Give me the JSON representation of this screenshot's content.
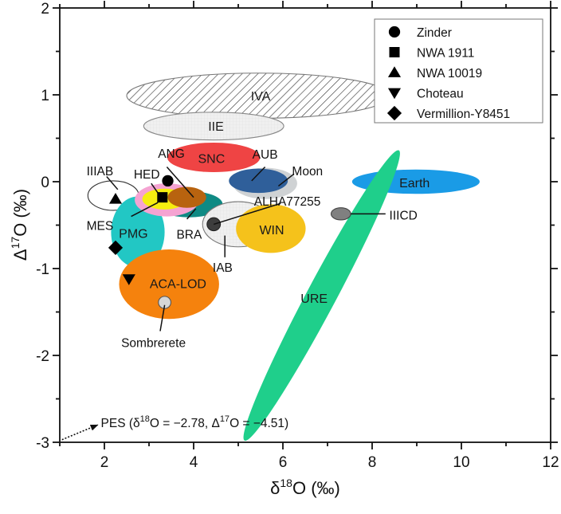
{
  "chart_data": {
    "type": "scatter",
    "title": "",
    "xlabel": "δ18O (‰)",
    "ylabel": "Δ17O (‰)",
    "xlim": [
      1,
      12
    ],
    "ylim": [
      -3,
      2
    ],
    "x_ticks": [
      2,
      4,
      6,
      8,
      10,
      12
    ],
    "x_tick_labels": [
      "2",
      "4",
      "6",
      "8",
      "10",
      "12"
    ],
    "y_ticks": [
      -3,
      -2,
      -1,
      0,
      1,
      2
    ],
    "y_tick_labels": [
      "-3",
      "-2",
      "-1",
      "0",
      "1",
      "2"
    ],
    "x_minor_step": 1,
    "y_minor_step": 0.5,
    "grid": false,
    "legend": {
      "placement": "top-right",
      "entries": [
        {
          "name": "Zinder",
          "marker": "circle"
        },
        {
          "name": "NWA 1911",
          "marker": "square"
        },
        {
          "name": "NWA 10019",
          "marker": "triangle-up"
        },
        {
          "name": "Choteau",
          "marker": "triangle-down"
        },
        {
          "name": "Vermillion-Y8451",
          "marker": "diamond"
        }
      ]
    },
    "fields": [
      {
        "name": "IVA",
        "cx": 5.45,
        "cy": 0.99,
        "rx": 2.95,
        "ry": 0.26,
        "angle": 0,
        "fill": "hatch",
        "stroke": "#777777",
        "label": "IVA",
        "label_pos": [
          5.5,
          0.99
        ]
      },
      {
        "name": "IIE",
        "cx": 4.45,
        "cy": 0.64,
        "rx": 1.57,
        "ry": 0.16,
        "angle": 0,
        "fill": "#f2f2f2",
        "stroke": "#888888",
        "label": "IIE",
        "label_pos": [
          4.5,
          0.64
        ]
      },
      {
        "name": "SNC",
        "cx": 4.45,
        "cy": 0.28,
        "rx": 1.04,
        "ry": 0.17,
        "angle": 0,
        "fill": "#ef4444",
        "stroke": "none",
        "label": "SNC",
        "label_pos": [
          4.4,
          0.27
        ]
      },
      {
        "name": "Moon",
        "cx": 5.6,
        "cy": -0.02,
        "rx": 0.72,
        "ry": 0.18,
        "angle": 0,
        "fill": "#cfd2d4",
        "stroke": "none",
        "label": "Moon",
        "label_pos": [
          6.55,
          0.13
        ]
      },
      {
        "name": "AUB",
        "cx": 5.45,
        "cy": 0.01,
        "rx": 0.66,
        "ry": 0.14,
        "angle": 0,
        "fill": "#2f5f9a",
        "stroke": "none",
        "label": "AUB",
        "label_pos": [
          5.6,
          0.32
        ]
      },
      {
        "name": "Earth",
        "cx": 8.98,
        "cy": 0.0,
        "rx": 1.43,
        "ry": 0.14,
        "angle": 0,
        "fill": "#1a9be6",
        "stroke": "none",
        "label": "Earth",
        "label_pos": [
          8.95,
          -0.01
        ]
      },
      {
        "name": "IIIAB",
        "cx": 2.2,
        "cy": -0.16,
        "rx": 0.57,
        "ry": 0.17,
        "angle": 0,
        "fill": "#ffffff",
        "stroke": "#333333",
        "label": "IIIAB",
        "label_pos": [
          1.9,
          0.13
        ]
      },
      {
        "name": "PMG",
        "cx": 2.75,
        "cy": -0.58,
        "rx": 0.6,
        "ry": 0.41,
        "angle": 0,
        "fill": "#22c7c4",
        "stroke": "none",
        "label": "PMG",
        "label_pos": [
          2.65,
          -0.59
        ]
      },
      {
        "name": "BRA",
        "cx": 3.9,
        "cy": -0.26,
        "rx": 0.75,
        "ry": 0.15,
        "angle": 0,
        "fill": "#0f8a84",
        "stroke": "none",
        "label": "BRA",
        "label_pos": [
          3.9,
          -0.6
        ]
      },
      {
        "name": "HED",
        "cx": 3.4,
        "cy": -0.21,
        "rx": 0.72,
        "ry": 0.19,
        "angle": 0,
        "fill": "#f5a3d2",
        "stroke": "none",
        "label": "HED",
        "label_pos": [
          2.95,
          0.09
        ]
      },
      {
        "name": "MES",
        "cx": 3.35,
        "cy": -0.2,
        "rx": 0.5,
        "ry": 0.12,
        "angle": 0,
        "fill": "#f5ee10",
        "stroke": "none",
        "label": "MES",
        "label_pos": [
          1.9,
          -0.5
        ]
      },
      {
        "name": "ANG",
        "cx": 3.85,
        "cy": -0.18,
        "rx": 0.43,
        "ry": 0.12,
        "angle": 0,
        "fill": "#b8630f",
        "stroke": "none",
        "label": "ANG",
        "label_pos": [
          3.5,
          0.33
        ]
      },
      {
        "name": "IAB",
        "cx": 5.0,
        "cy": -0.49,
        "rx": 0.8,
        "ry": 0.26,
        "angle": 0,
        "fill": "#ececec",
        "stroke": "#777777",
        "label": "IAB",
        "label_pos": [
          4.65,
          -0.98
        ]
      },
      {
        "name": "WIN",
        "cx": 5.73,
        "cy": -0.54,
        "rx": 0.78,
        "ry": 0.28,
        "angle": 0,
        "fill": "#f5c21b",
        "stroke": "none",
        "label": "WIN",
        "label_pos": [
          5.75,
          -0.55
        ]
      },
      {
        "name": "ACA-LOD",
        "cx": 3.45,
        "cy": -1.18,
        "rx": 1.12,
        "ry": 0.4,
        "angle": 0,
        "fill": "#f5820d",
        "stroke": "none",
        "label": "ACA-LOD",
        "label_pos": [
          3.65,
          -1.17
        ]
      },
      {
        "name": "URE",
        "cx": 6.87,
        "cy": -1.31,
        "rx": 2.5,
        "ry": 0.33,
        "angle": -62,
        "fill": "#1fcf8b",
        "stroke": "none",
        "label": "URE",
        "label_pos": [
          6.7,
          -1.34
        ]
      },
      {
        "name": "IIICD",
        "cx": 7.3,
        "cy": -0.37,
        "rx": 0.22,
        "ry": 0.07,
        "angle": 0,
        "fill": "#808080",
        "stroke": "#444444",
        "label": "IIICD",
        "label_pos": [
          8.7,
          -0.38
        ]
      },
      {
        "name": "ALHA77255",
        "cx": 4.45,
        "cy": -0.49,
        "rx": 0.15,
        "ry": 0.075,
        "angle": 0,
        "fill": "#3d3d3d",
        "stroke": "#222222",
        "label": "ALHA77255",
        "label_pos": [
          6.1,
          -0.22
        ]
      },
      {
        "name": "Sombrerete",
        "cx": 3.35,
        "cy": -1.39,
        "rx": 0.14,
        "ry": 0.07,
        "angle": 0,
        "fill": "#d6d6d6",
        "stroke": "#555555",
        "label": "Sombrerete",
        "label_pos": [
          3.1,
          -1.85
        ]
      }
    ],
    "leader_lines": [
      {
        "for": "IIIAB",
        "from": [
          2.05,
          0.06
        ],
        "to": [
          2.3,
          -0.09
        ]
      },
      {
        "for": "HED",
        "from": [
          3.05,
          -0.02
        ],
        "to": [
          3.2,
          -0.13
        ]
      },
      {
        "for": "MES",
        "from": [
          2.6,
          -0.4
        ],
        "to": [
          3.2,
          -0.24
        ]
      },
      {
        "for": "ANG",
        "from": [
          3.4,
          0.17
        ],
        "to": [
          4.0,
          -0.18
        ]
      },
      {
        "for": "BRA",
        "from": [
          3.85,
          -0.43
        ],
        "to": [
          4.05,
          -0.31
        ]
      },
      {
        "for": "AUB",
        "from": [
          5.6,
          0.17
        ],
        "to": [
          5.3,
          0.01
        ]
      },
      {
        "for": "Moon",
        "from": [
          6.25,
          0.09
        ],
        "to": [
          5.9,
          -0.05
        ]
      },
      {
        "for": "ALHA77255",
        "from": [
          5.95,
          -0.25
        ],
        "to": [
          4.45,
          -0.49
        ]
      },
      {
        "for": "IAB",
        "from": [
          4.7,
          -0.87
        ],
        "to": [
          4.7,
          -0.62
        ]
      },
      {
        "for": "IIICD",
        "from": [
          7.52,
          -0.37
        ],
        "to": [
          8.3,
          -0.37
        ]
      },
      {
        "for": "Sombrerete",
        "from": [
          3.25,
          -1.72
        ],
        "to": [
          3.35,
          -1.42
        ]
      }
    ],
    "points": [
      {
        "name": "Zinder",
        "marker": "circle",
        "x": 3.42,
        "y": 0.01
      },
      {
        "name": "NWA 1911",
        "marker": "square",
        "x": 3.3,
        "y": -0.18
      },
      {
        "name": "NWA 10019",
        "marker": "triangle-up",
        "x": 2.25,
        "y": -0.2
      },
      {
        "name": "Choteau",
        "marker": "triangle-down",
        "x": 2.55,
        "y": -1.12
      },
      {
        "name": "Vermillion-Y8451",
        "marker": "diamond",
        "x": 2.25,
        "y": -0.76
      }
    ],
    "annotations": [
      {
        "text": "PES (δ18O = −2.78, Δ17O = −4.51)",
        "prefix": "PES (δ",
        "sup1": "18",
        "mid": "O = −2.78, Δ",
        "sup2": "17",
        "suffix": "O = −4.51)",
        "x": 1.92,
        "y": -2.77,
        "arrow_from": [
          1.05,
          -2.97
        ],
        "arrow_to": [
          1.85,
          -2.8
        ]
      }
    ]
  },
  "axis_titles": {
    "x_prefix": "δ",
    "x_sup": "18",
    "x_suffix": "O (‰)",
    "y_prefix": "Δ",
    "y_sup": "17",
    "y_suffix": "O (‰)"
  }
}
